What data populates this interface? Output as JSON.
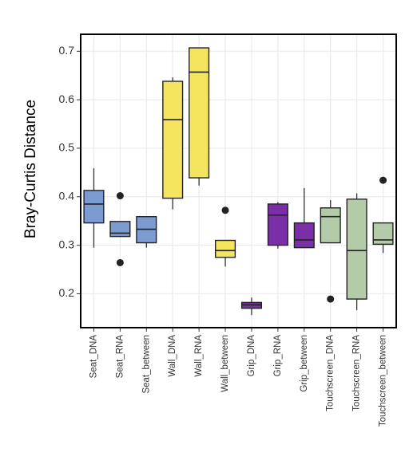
{
  "chart_data": {
    "type": "box",
    "y_label": "Bray-Curtis Distance",
    "categories": [
      "Seat_DNA",
      "Seat_RNA",
      "Seat_between",
      "Wall_DNA",
      "Wall_RNA",
      "Wall_between",
      "Grip_DNA",
      "Grip_RNA",
      "Grip_between",
      "Touchscreen_DNA",
      "Touchscreen_RNA",
      "Touchscreen_between"
    ],
    "colors": [
      "#7b9bd1",
      "#7b9bd1",
      "#7b9bd1",
      "#f5e55e",
      "#f5e55e",
      "#f5e55e",
      "#7b2fa6",
      "#7b2fa6",
      "#7b2fa6",
      "#b3cba8",
      "#b3cba8",
      "#b3cba8"
    ],
    "boxes": [
      {
        "min": 0.295,
        "q1": 0.346,
        "median": 0.385,
        "q3": 0.413,
        "max": 0.459,
        "outliers": []
      },
      {
        "min": 0.318,
        "q1": 0.318,
        "median": 0.325,
        "q3": 0.349,
        "max": 0.349,
        "outliers": [
          0.402,
          0.264
        ]
      },
      {
        "min": 0.295,
        "q1": 0.305,
        "median": 0.333,
        "q3": 0.359,
        "max": 0.359,
        "outliers": []
      },
      {
        "min": 0.374,
        "q1": 0.397,
        "median": 0.559,
        "q3": 0.638,
        "max": 0.646,
        "outliers": []
      },
      {
        "min": 0.423,
        "q1": 0.439,
        "median": 0.657,
        "q3": 0.707,
        "max": 0.707,
        "outliers": []
      },
      {
        "min": 0.256,
        "q1": 0.275,
        "median": 0.289,
        "q3": 0.31,
        "max": 0.31,
        "outliers": [
          0.372
        ]
      },
      {
        "min": 0.156,
        "q1": 0.17,
        "median": 0.177,
        "q3": 0.182,
        "max": 0.192,
        "outliers": []
      },
      {
        "min": 0.293,
        "q1": 0.3,
        "median": 0.362,
        "q3": 0.385,
        "max": 0.389,
        "outliers": []
      },
      {
        "min": 0.295,
        "q1": 0.295,
        "median": 0.311,
        "q3": 0.346,
        "max": 0.418,
        "outliers": []
      },
      {
        "min": 0.305,
        "q1": 0.305,
        "median": 0.359,
        "q3": 0.377,
        "max": 0.393,
        "outliers": [
          0.189
        ]
      },
      {
        "min": 0.166,
        "q1": 0.189,
        "median": 0.289,
        "q3": 0.395,
        "max": 0.407,
        "outliers": []
      },
      {
        "min": 0.284,
        "q1": 0.302,
        "median": 0.311,
        "q3": 0.346,
        "max": 0.346,
        "outliers": [
          0.434
        ]
      }
    ],
    "ylim": [
      0.13,
      0.735
    ],
    "yticks": [
      0.2,
      0.3,
      0.4,
      0.5,
      0.6,
      0.7
    ],
    "grid": true
  }
}
